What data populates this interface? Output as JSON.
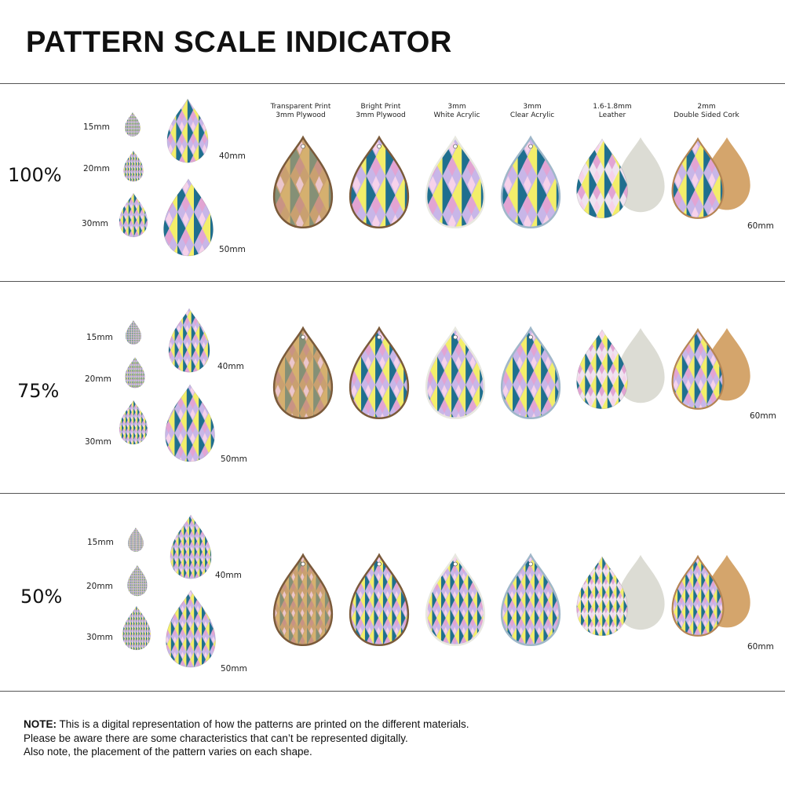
{
  "title": "PATTERN SCALE INDICATOR",
  "materials": [
    {
      "line1": "Transparent Print",
      "line2": "3mm Plywood",
      "kind": "plywood-transparent"
    },
    {
      "line1": "Bright Print",
      "line2": "3mm Plywood",
      "kind": "plywood-bright"
    },
    {
      "line1": "3mm",
      "line2": "White Acrylic",
      "kind": "acrylic-white"
    },
    {
      "line1": "3mm",
      "line2": "Clear Acrylic",
      "kind": "acrylic-clear"
    },
    {
      "line1": "1.6-1.8mm",
      "line2": "Leather",
      "kind": "leather"
    },
    {
      "line1": "2mm",
      "line2": "Double Sided Cork",
      "kind": "cork"
    }
  ],
  "sizes": {
    "s15": "15mm",
    "s20": "20mm",
    "s30": "30mm",
    "s40": "40mm",
    "s50": "50mm",
    "s60": "60mm"
  },
  "sections": [
    {
      "scale": "100%"
    },
    {
      "scale": "75%"
    },
    {
      "scale": "50%"
    }
  ],
  "note": {
    "label": "NOTE:",
    "line1": " This is a digital representation of how the patterns are printed on the different materials.",
    "line2": "Please be aware there are some characteristics that can’t be represented digitally.",
    "line3": "Also note, the placement of the pattern varies on each shape."
  },
  "colors": {
    "teal": "#1f6f8f",
    "yellow": "#f3ee6a",
    "pink": "#e2a4d3",
    "lavender": "#c8b6e8",
    "leather_back": "#dcdcd4",
    "cork": "#d4a56c",
    "wood": "#b98c5a"
  }
}
